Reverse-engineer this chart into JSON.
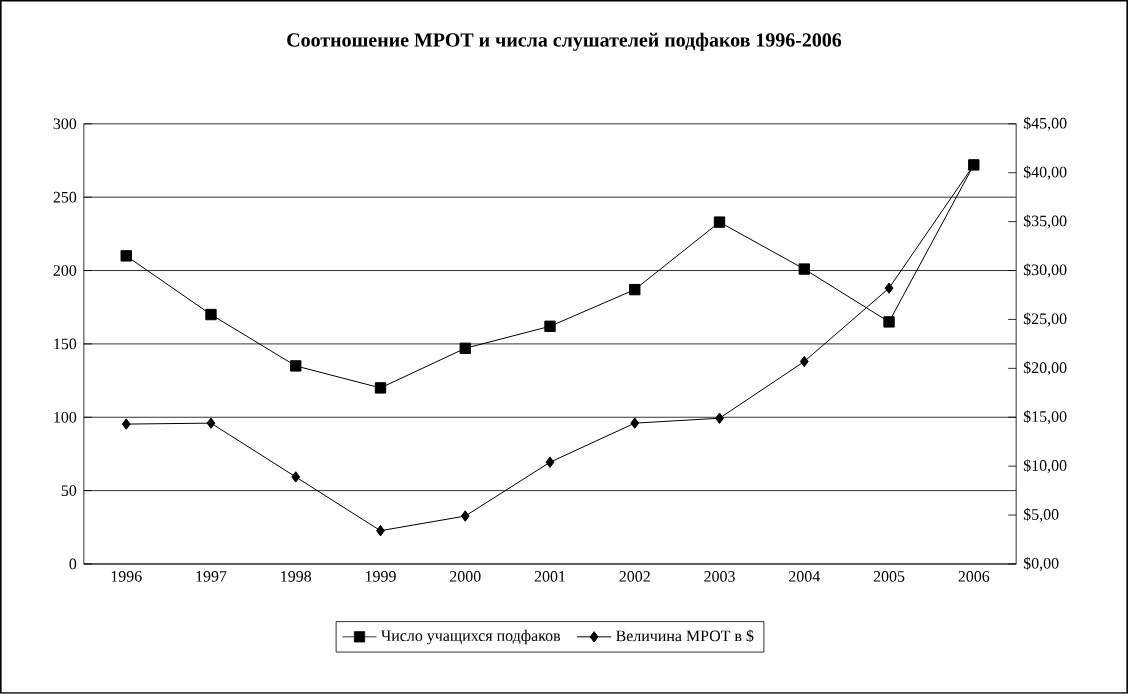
{
  "chart_data": {
    "type": "line",
    "title": "Соотношение МРОТ и числа слушателей подфаков 1996-2006",
    "categories": [
      "1996",
      "1997",
      "1998",
      "1999",
      "2000",
      "2001",
      "2002",
      "2003",
      "2004",
      "2005",
      "2006"
    ],
    "series": [
      {
        "name": "Число учащихся подфаков",
        "color": "#000000",
        "marker": "square",
        "values": [
          210,
          170,
          135,
          120,
          147,
          162,
          187,
          233,
          201,
          165,
          272
        ]
      },
      {
        "name": "Величина МРОТ в $",
        "color": "#000000",
        "marker": "diamond",
        "axis": "y2",
        "values": [
          14.3,
          14.4,
          8.9,
          3.4,
          4.9,
          10.4,
          14.4,
          14.9,
          20.7,
          28.2,
          40.8
        ]
      }
    ],
    "ylim": [
      0,
      300
    ],
    "yticks": [
      0,
      50,
      100,
      150,
      200,
      250,
      300
    ],
    "y2lim": [
      0,
      45
    ],
    "y2ticks": [
      {
        "value": 0,
        "label": "$0,00"
      },
      {
        "value": 5,
        "label": "$5,00"
      },
      {
        "value": 10,
        "label": "$10,00"
      },
      {
        "value": 15,
        "label": "$15,00"
      },
      {
        "value": 20,
        "label": "$20,00"
      },
      {
        "value": 25,
        "label": "$25,00"
      },
      {
        "value": 30,
        "label": "$30,00"
      },
      {
        "value": 35,
        "label": "$35,00"
      },
      {
        "value": 40,
        "label": "$40,00"
      },
      {
        "value": 45,
        "label": "$45,00"
      }
    ],
    "grid": "y",
    "legend": "bottom",
    "line_style": "solid"
  }
}
